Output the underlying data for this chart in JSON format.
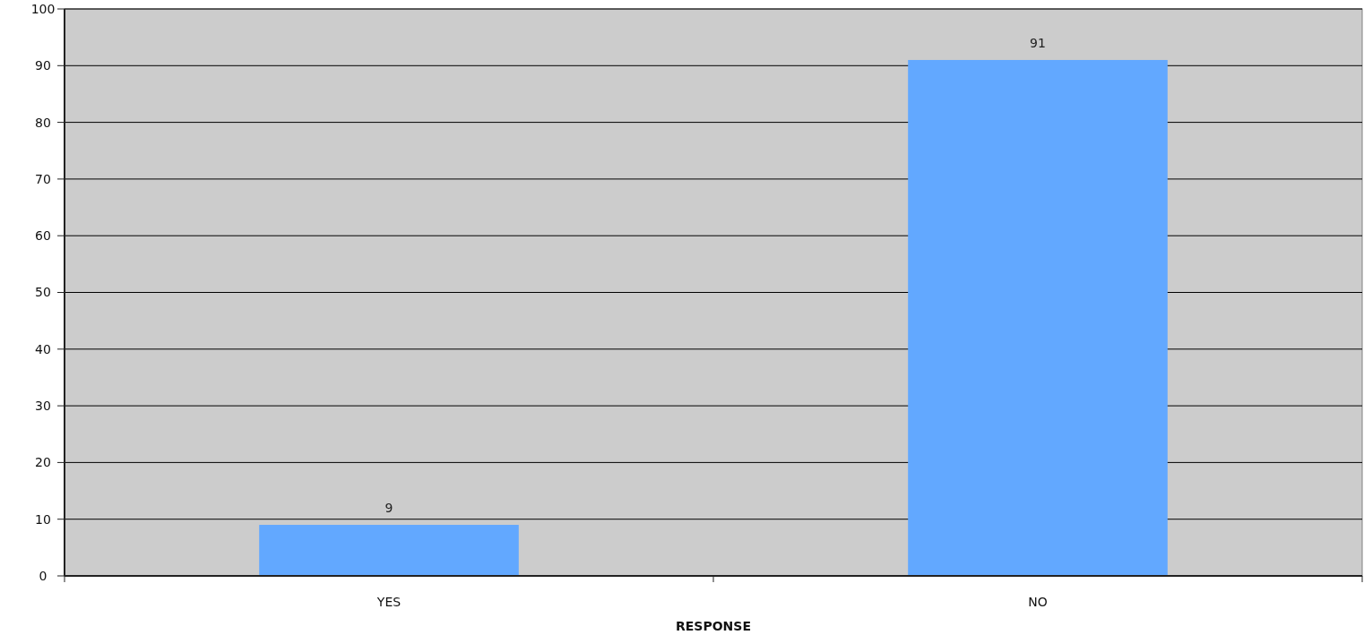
{
  "chart_data": {
    "type": "bar",
    "xlabel": "RESPONSE",
    "categories": [
      "YES",
      "NO"
    ],
    "values": [
      9,
      91
    ],
    "color": "#62a8ff",
    "ylim": [
      0,
      100
    ],
    "yticks": [
      0,
      10,
      20,
      30,
      40,
      50,
      60,
      70,
      80,
      90,
      100
    ],
    "grid": "y",
    "data_labels": true
  }
}
